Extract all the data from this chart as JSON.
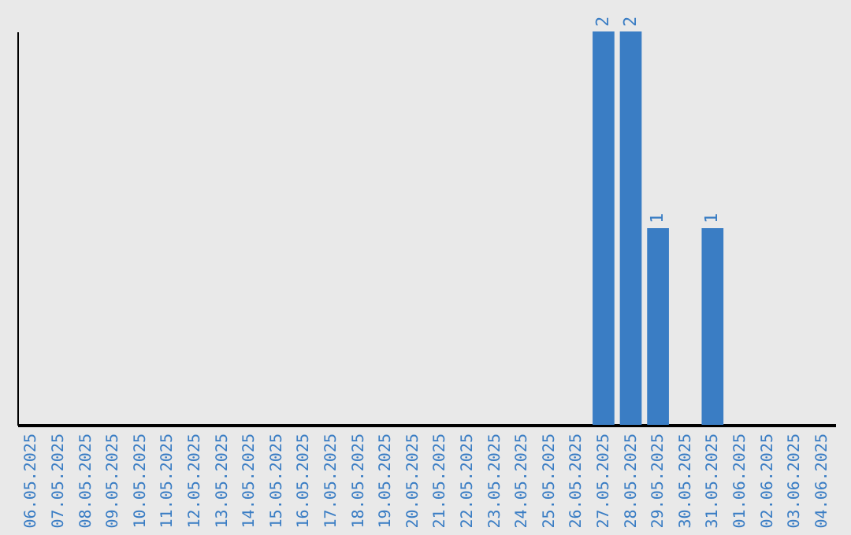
{
  "chart_data": {
    "type": "bar",
    "categories": [
      "06.05.2025",
      "07.05.2025",
      "08.05.2025",
      "09.05.2025",
      "10.05.2025",
      "11.05.2025",
      "12.05.2025",
      "13.05.2025",
      "14.05.2025",
      "15.05.2025",
      "16.05.2025",
      "17.05.2025",
      "18.05.2025",
      "19.05.2025",
      "20.05.2025",
      "21.05.2025",
      "22.05.2025",
      "23.05.2025",
      "24.05.2025",
      "25.05.2025",
      "26.05.2025",
      "27.05.2025",
      "28.05.2025",
      "29.05.2025",
      "30.05.2025",
      "31.05.2025",
      "01.06.2025",
      "02.06.2025",
      "03.06.2025",
      "04.06.2025"
    ],
    "values": [
      null,
      null,
      null,
      null,
      null,
      null,
      null,
      null,
      null,
      null,
      null,
      null,
      null,
      null,
      null,
      null,
      null,
      null,
      null,
      null,
      null,
      2,
      2,
      1,
      null,
      1,
      null,
      null,
      null,
      null
    ],
    "value_labels": [
      null,
      null,
      null,
      null,
      null,
      null,
      null,
      null,
      null,
      null,
      null,
      null,
      null,
      null,
      null,
      null,
      null,
      null,
      null,
      null,
      null,
      "2",
      "2",
      "1",
      null,
      "1",
      null,
      null,
      null,
      null
    ],
    "color": "#3a7dc4",
    "tick_labels": "x"
  }
}
